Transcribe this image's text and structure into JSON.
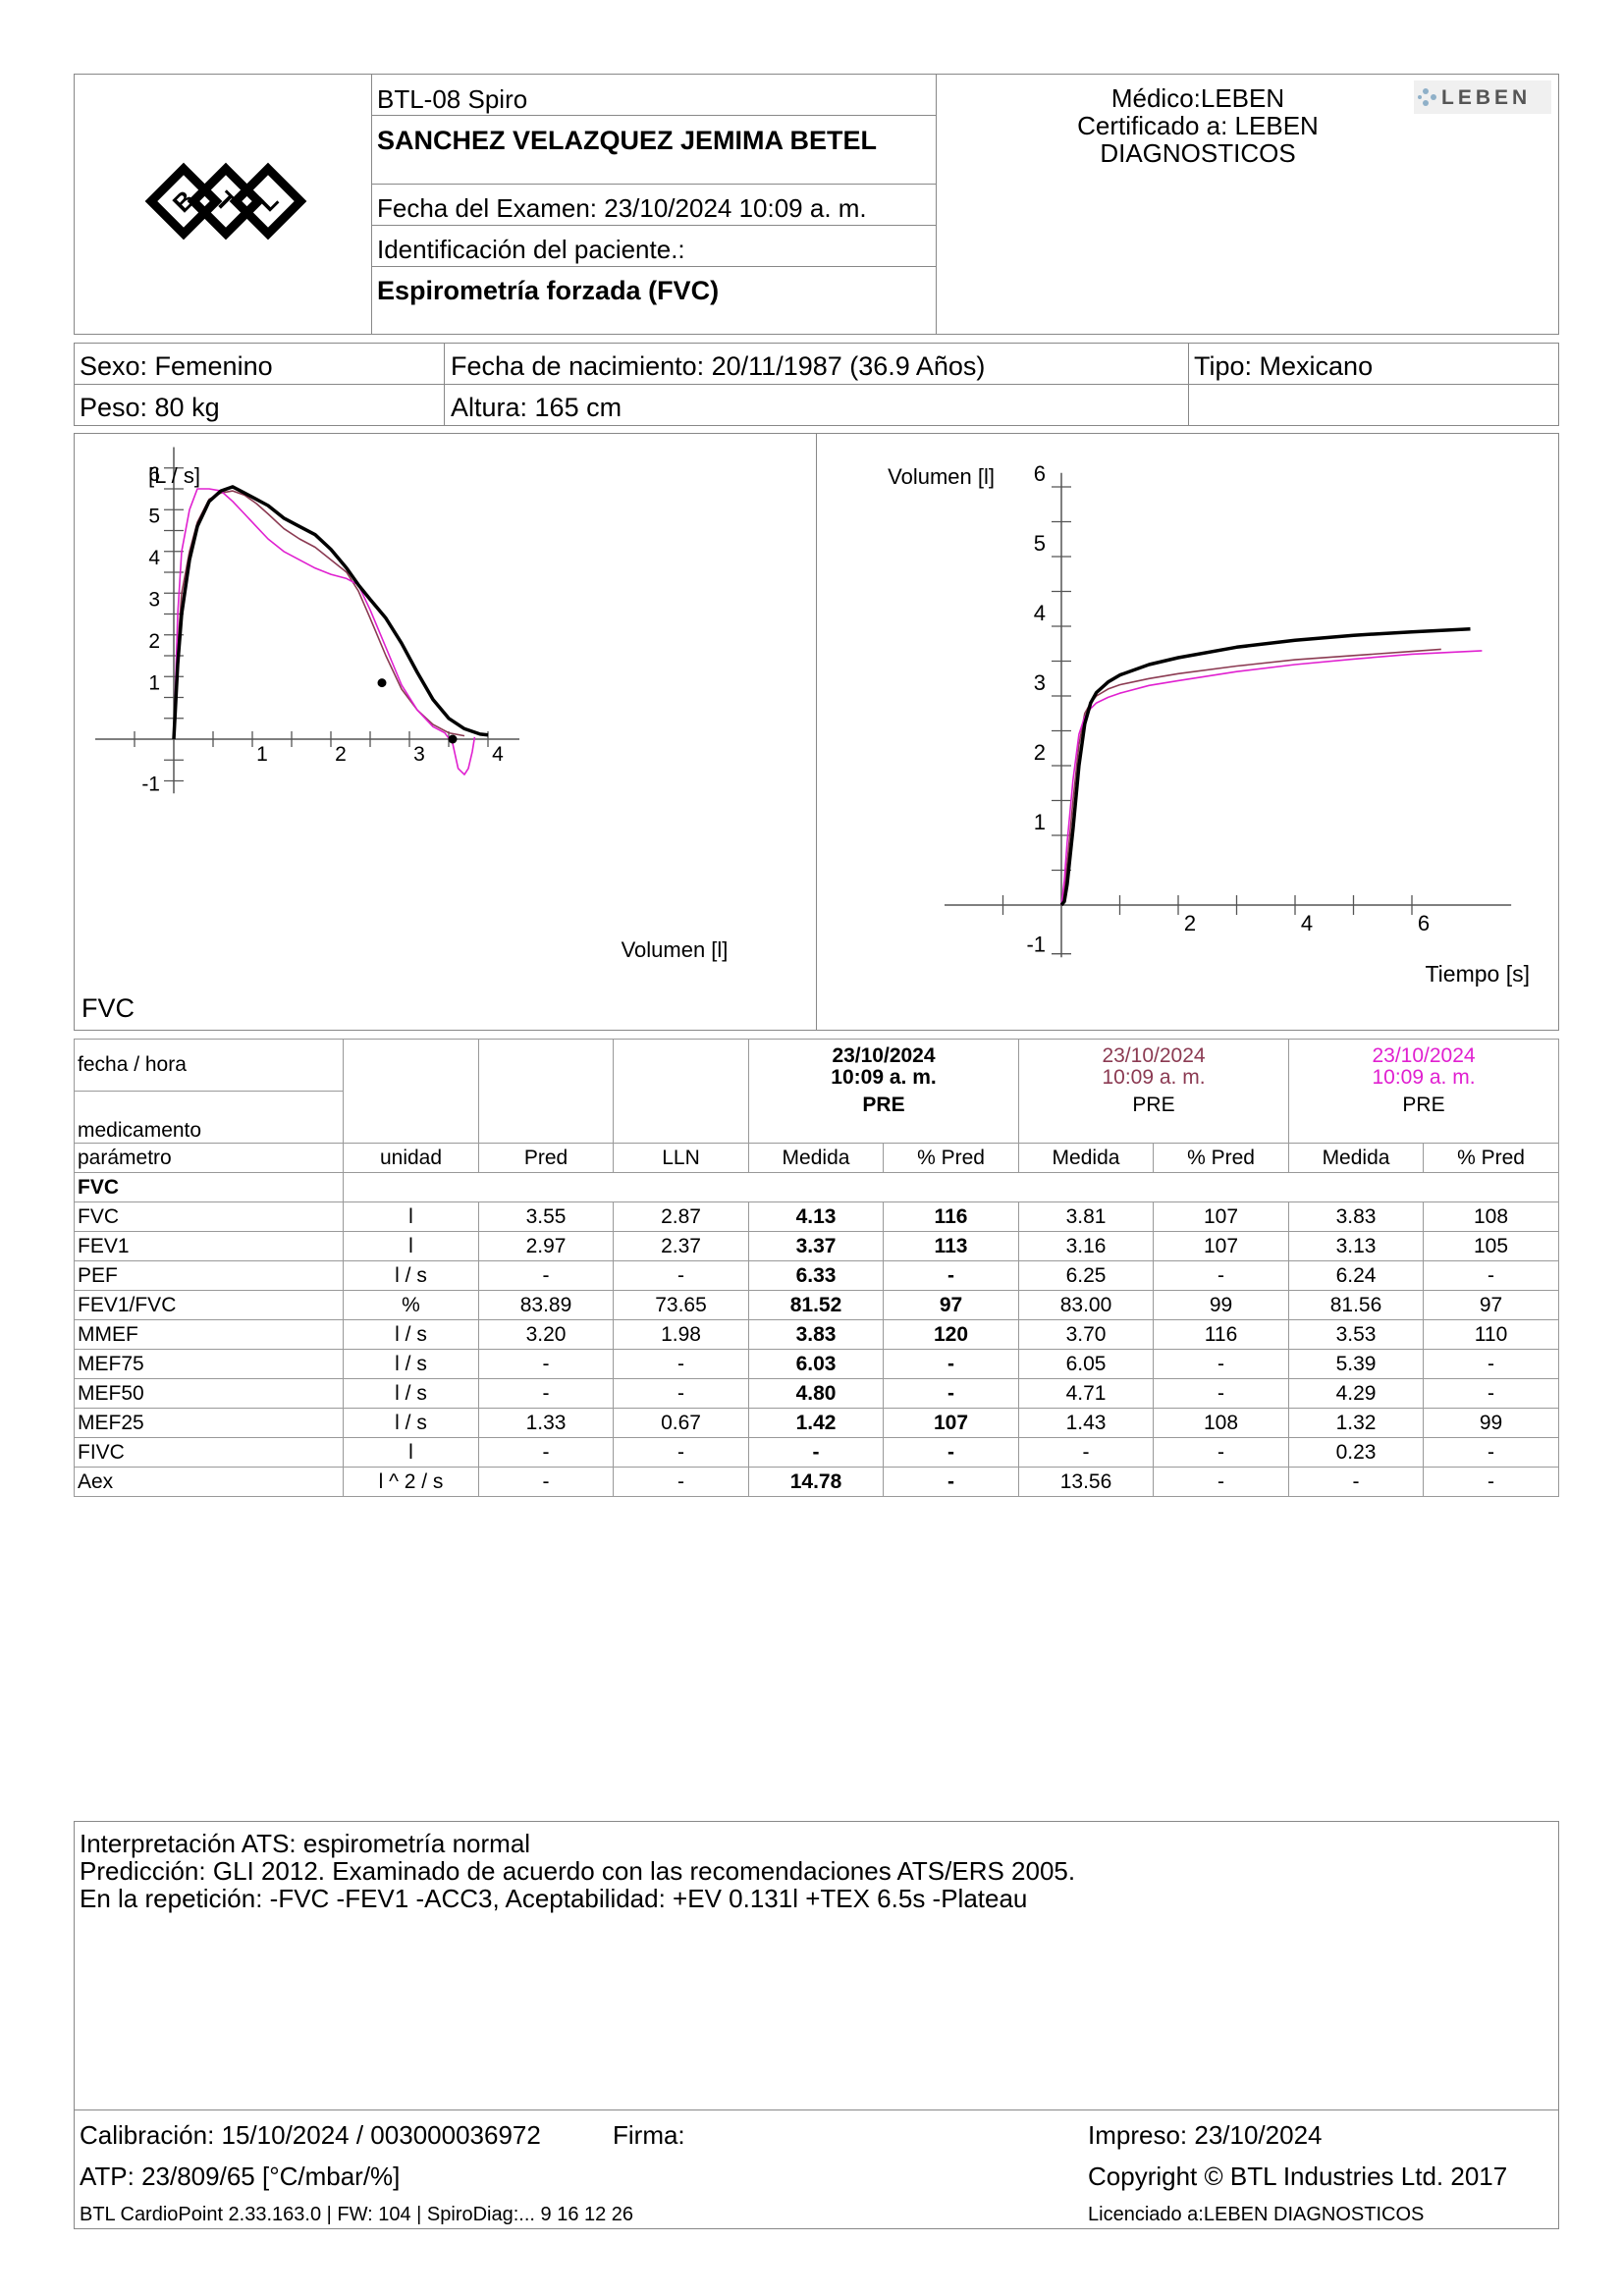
{
  "header": {
    "device": "BTL-08 Spiro",
    "patient_name": "SANCHEZ VELAZQUEZ JEMIMA BETEL",
    "exam_date_label": "Fecha del Examen:  23/10/2024 10:09 a. m.",
    "patient_id_label": "Identificación del paciente.:",
    "test_type": "Espirometría forzada (FVC)",
    "doctor": "Médico:LEBEN",
    "certified_line1": "Certificado a: LEBEN",
    "certified_line2": "DIAGNOSTICOS",
    "logo_text": "BTL",
    "leben_logo_text": "LEBEN"
  },
  "patient": {
    "sex": "Sexo: Femenino",
    "dob": "Fecha de nacimiento: 20/11/1987 (36.9 Años)",
    "type": "Tipo: Mexicano",
    "weight": "Peso: 80 kg",
    "height": "Altura: 165 cm"
  },
  "colors": {
    "pre_best": "#000000",
    "trial2": "#8b3a52",
    "trial3": "#e020d0"
  },
  "chart_data": [
    {
      "type": "line",
      "title": "FVC",
      "xlabel": "Volumen [l]",
      "ylabel": "[L / s]",
      "xlim": [
        -1,
        4.4
      ],
      "ylim": [
        -1.3,
        7
      ],
      "xticks": [
        "1",
        "2",
        "3",
        "4"
      ],
      "yticks": [
        "-1",
        "1",
        "2",
        "3",
        "4",
        "5",
        "6"
      ],
      "series": [
        {
          "color": "#000000",
          "x": [
            0,
            0.05,
            0.1,
            0.2,
            0.3,
            0.45,
            0.6,
            0.75,
            0.9,
            1.05,
            1.2,
            1.4,
            1.6,
            1.8,
            2.0,
            2.2,
            2.35,
            2.5,
            2.7,
            2.9,
            3.1,
            3.3,
            3.5,
            3.7,
            3.9,
            4.0
          ],
          "y": [
            0,
            1.8,
            3.0,
            4.3,
            5.1,
            5.7,
            5.95,
            6.05,
            5.9,
            5.75,
            5.6,
            5.3,
            5.1,
            4.9,
            4.55,
            4.1,
            3.7,
            3.35,
            2.9,
            2.3,
            1.6,
            0.95,
            0.5,
            0.25,
            0.12,
            0.1
          ]
        },
        {
          "color": "#8b3a52",
          "x": [
            0,
            0.05,
            0.1,
            0.2,
            0.3,
            0.45,
            0.6,
            0.75,
            0.9,
            1.05,
            1.2,
            1.4,
            1.6,
            1.8,
            2.0,
            2.2,
            2.35,
            2.5,
            2.7,
            2.9,
            3.1,
            3.3,
            3.5,
            3.7
          ],
          "y": [
            0,
            2.2,
            3.5,
            4.5,
            5.2,
            5.75,
            5.9,
            5.95,
            5.85,
            5.65,
            5.4,
            5.05,
            4.8,
            4.6,
            4.3,
            4.0,
            3.55,
            2.9,
            2.0,
            1.2,
            0.7,
            0.35,
            0.15,
            0.08
          ]
        },
        {
          "color": "#e020d0",
          "x": [
            0,
            0.05,
            0.1,
            0.2,
            0.3,
            0.45,
            0.6,
            0.75,
            0.9,
            1.05,
            1.2,
            1.4,
            1.6,
            1.8,
            2.0,
            2.2,
            2.35,
            2.5,
            2.7,
            2.9,
            3.1,
            3.3,
            3.45,
            3.55,
            3.62,
            3.7,
            3.75,
            3.8,
            3.83
          ],
          "y": [
            0,
            3.0,
            4.5,
            5.5,
            6.0,
            6.0,
            5.95,
            5.7,
            5.4,
            5.1,
            4.8,
            4.5,
            4.3,
            4.1,
            3.95,
            3.85,
            3.7,
            3.1,
            2.2,
            1.3,
            0.7,
            0.3,
            0.15,
            -0.1,
            -0.7,
            -0.85,
            -0.7,
            -0.3,
            0.05
          ]
        }
      ],
      "points": [
        {
          "x": 2.65,
          "y": 1.35
        },
        {
          "x": 3.55,
          "y": 0.0
        }
      ]
    },
    {
      "type": "line",
      "xlabel": "Tiempo [s]",
      "ylabel": "Volumen [l]",
      "xlim": [
        -2.0,
        8.0
      ],
      "ylim": [
        -1.0,
        6.2
      ],
      "xticks": [
        "2",
        "4",
        "6"
      ],
      "yticks": [
        "-1",
        "1",
        "2",
        "3",
        "4",
        "5",
        "6"
      ],
      "series": [
        {
          "color": "#000000",
          "x": [
            0,
            0.05,
            0.1,
            0.2,
            0.3,
            0.4,
            0.5,
            0.6,
            0.8,
            1.0,
            1.5,
            2.0,
            3.0,
            4.0,
            5.0,
            6.0,
            7.0
          ],
          "y": [
            0,
            0.05,
            0.3,
            1.1,
            2.0,
            2.6,
            2.9,
            3.05,
            3.2,
            3.3,
            3.45,
            3.55,
            3.7,
            3.8,
            3.87,
            3.92,
            3.96
          ]
        },
        {
          "color": "#8b3a52",
          "x": [
            0,
            0.05,
            0.1,
            0.2,
            0.3,
            0.4,
            0.5,
            0.6,
            0.8,
            1.0,
            1.5,
            2.0,
            3.0,
            4.0,
            5.0,
            6.0,
            6.5
          ],
          "y": [
            0,
            0.2,
            0.6,
            1.5,
            2.3,
            2.75,
            2.9,
            3.0,
            3.1,
            3.16,
            3.25,
            3.32,
            3.43,
            3.52,
            3.58,
            3.64,
            3.67
          ]
        },
        {
          "color": "#e020d0",
          "x": [
            0,
            0.05,
            0.1,
            0.2,
            0.3,
            0.4,
            0.5,
            0.6,
            0.8,
            1.0,
            1.5,
            2.0,
            3.0,
            4.0,
            5.0,
            6.0,
            7.2
          ],
          "y": [
            0,
            0.35,
            0.9,
            1.8,
            2.45,
            2.7,
            2.82,
            2.9,
            2.98,
            3.04,
            3.15,
            3.22,
            3.35,
            3.45,
            3.53,
            3.6,
            3.65
          ]
        }
      ]
    }
  ],
  "results": {
    "label_fecha": "fecha / hora",
    "label_medicamento": "medicamento",
    "trials": [
      {
        "date": "23/10/2024",
        "time": "10:09 a. m.",
        "med": "PRE"
      },
      {
        "date": "23/10/2024",
        "time": "10:09 a. m.",
        "med": "PRE"
      },
      {
        "date": "23/10/2024",
        "time": "10:09 a. m.",
        "med": "PRE"
      }
    ],
    "columns": [
      "parámetro",
      "unidad",
      "Pred",
      "LLN",
      "Medida",
      "% Pred",
      "Medida",
      "% Pred",
      "Medida",
      "% Pred"
    ],
    "group": "FVC",
    "rows": [
      [
        "FVC",
        "l",
        "3.55",
        "2.87",
        "4.13",
        "116",
        "3.81",
        "107",
        "3.83",
        "108"
      ],
      [
        "FEV1",
        "l",
        "2.97",
        "2.37",
        "3.37",
        "113",
        "3.16",
        "107",
        "3.13",
        "105"
      ],
      [
        "PEF",
        "l / s",
        "-",
        "-",
        "6.33",
        "-",
        "6.25",
        "-",
        "6.24",
        "-"
      ],
      [
        "FEV1/FVC",
        "%",
        "83.89",
        "73.65",
        "81.52",
        "97",
        "83.00",
        "99",
        "81.56",
        "97"
      ],
      [
        "MMEF",
        "l / s",
        "3.20",
        "1.98",
        "3.83",
        "120",
        "3.70",
        "116",
        "3.53",
        "110"
      ],
      [
        "MEF75",
        "l / s",
        "-",
        "-",
        "6.03",
        "-",
        "6.05",
        "-",
        "5.39",
        "-"
      ],
      [
        "MEF50",
        "l / s",
        "-",
        "-",
        "4.80",
        "-",
        "4.71",
        "-",
        "4.29",
        "-"
      ],
      [
        "MEF25",
        "l / s",
        "1.33",
        "0.67",
        "1.42",
        "107",
        "1.43",
        "108",
        "1.32",
        "99"
      ],
      [
        "FIVC",
        "l",
        "-",
        "-",
        "-",
        "-",
        "-",
        "-",
        "0.23",
        "-"
      ],
      [
        "Aex",
        "l ^ 2 / s",
        "-",
        "-",
        "14.78",
        "-",
        "13.56",
        "-",
        "-",
        "-"
      ]
    ]
  },
  "interpretation": {
    "line1": "Interpretación ATS: espirometría normal",
    "line2": "Predicción: GLI 2012. Examinado de acuerdo con las recomendaciones ATS/ERS 2005.",
    "line3": "En la repetición: -FVC -FEV1 -ACC3, Aceptabilidad: +EV 0.131l +TEX 6.5s -Plateau"
  },
  "footer": {
    "calibration": "Calibración: 15/10/2024 / 003000036972",
    "signature": "Firma:",
    "printed": "Impreso: 23/10/2024",
    "atp": "ATP: 23/809/65 [°C/mbar/%]",
    "copyright": "Copyright © BTL Industries Ltd. 2017",
    "software": "BTL CardioPoint 2.33.163.0 | FW: 104 | SpiroDiag:... 9 16 12 26",
    "license": "Licenciado a:LEBEN DIAGNOSTICOS"
  }
}
